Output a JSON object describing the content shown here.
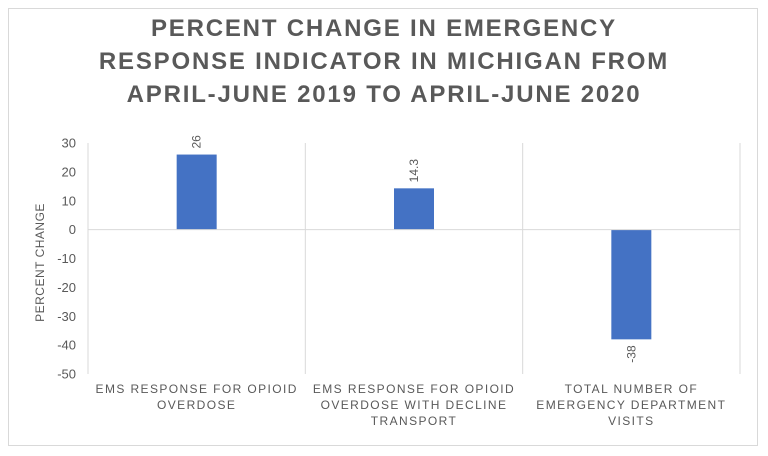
{
  "chart_data": {
    "type": "bar",
    "title_lines": [
      "PERCENT CHANGE IN EMERGENCY",
      "RESPONSE INDICATOR IN MICHIGAN FROM",
      "APRIL-JUNE 2019 TO APRIL-JUNE 2020"
    ],
    "categories": [
      "EMS RESPONSE FOR OPIOID OVERDOSE",
      "EMS RESPONSE FOR OPIOID OVERDOSE WITH DECLINE TRANSPORT",
      "TOTAL NUMBER OF EMERGENCY DEPARTMENT VISITS"
    ],
    "values": [
      26,
      14.3,
      -38
    ],
    "data_labels": [
      "26",
      "14.3",
      "-38"
    ],
    "xlabel": "",
    "ylabel": "PERCENT CHANGE",
    "ylim": [
      -50,
      30
    ],
    "yticks": [
      "30",
      "20",
      "10",
      "0",
      "-10",
      "-20",
      "-30",
      "-40",
      "-50"
    ],
    "bar_color": "#4472c4",
    "grid": "vertical category separators",
    "legend": "none"
  }
}
